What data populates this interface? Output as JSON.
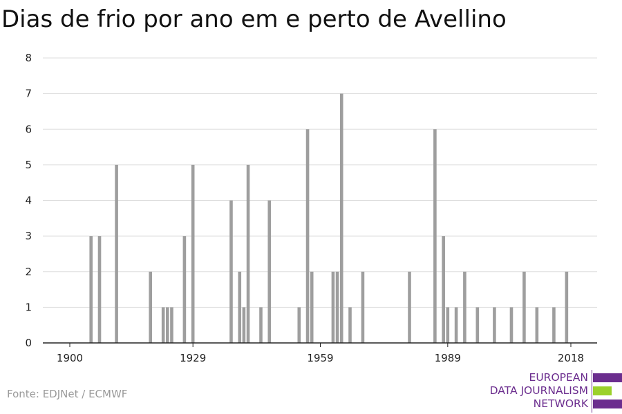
{
  "title": "Dias de frio por ano em e perto de Avellino",
  "source": "Fonte: EDJNet / ECMWF",
  "logo": {
    "lines": [
      "EUROPEAN",
      "DATA JOURNALISM",
      "NETWORK"
    ],
    "colors": [
      "#6b2d8e",
      "#9bd12b",
      "#6b2d8e"
    ]
  },
  "chart_data": {
    "type": "bar",
    "title": "Dias de frio por ano em e perto de Avellino",
    "xlabel": "",
    "ylabel": "",
    "ylim": [
      0,
      8
    ],
    "xlim": [
      1900,
      2021
    ],
    "x_ticks": [
      1900,
      1929,
      1959,
      1989,
      2018
    ],
    "y_ticks": [
      0,
      1,
      2,
      3,
      4,
      5,
      6,
      7,
      8
    ],
    "grid": true,
    "bar_color": "#9e9e9e",
    "x": [
      1905,
      1907,
      1911,
      1919,
      1922,
      1923,
      1924,
      1927,
      1929,
      1938,
      1940,
      1941,
      1942,
      1945,
      1947,
      1954,
      1956,
      1957,
      1962,
      1963,
      1964,
      1966,
      1969,
      1980,
      1986,
      1988,
      1989,
      1991,
      1993,
      1996,
      2000,
      2004,
      2007,
      2010,
      2014,
      2017
    ],
    "values": [
      3,
      3,
      5,
      2,
      1,
      1,
      1,
      3,
      5,
      4,
      2,
      1,
      5,
      1,
      4,
      1,
      6,
      2,
      2,
      2,
      7,
      1,
      2,
      2,
      6,
      3,
      1,
      1,
      2,
      1,
      1,
      1,
      2,
      1,
      1,
      2
    ]
  }
}
